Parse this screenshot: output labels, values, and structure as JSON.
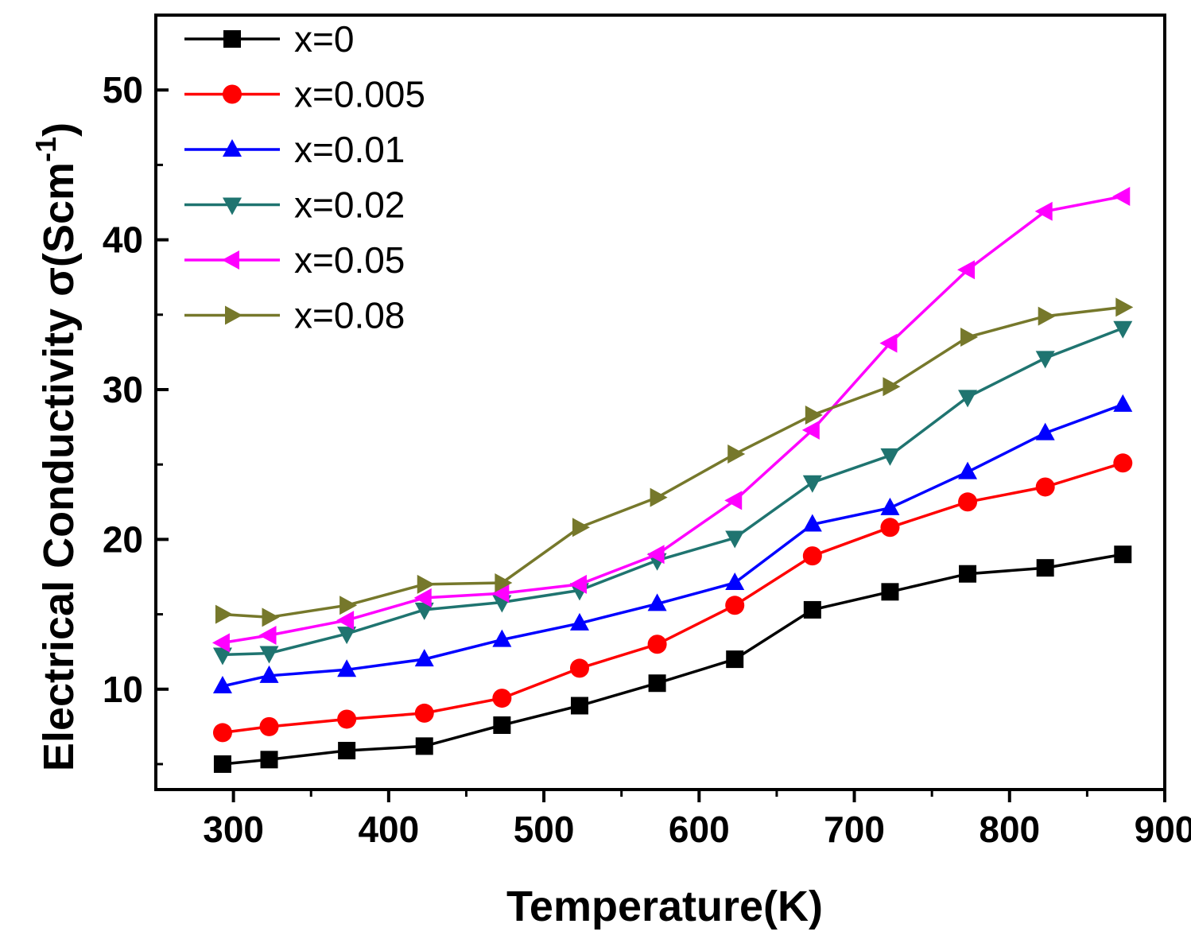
{
  "chart_data": {
    "type": "line",
    "title": "",
    "xlabel": "Temperature(K)",
    "ylabel": "Electrical Conductivity σ(Scm",
    "ylabel_superscript": "-1",
    "ylabel_close": ")",
    "xlim": [
      250,
      900
    ],
    "ylim": [
      3.3,
      55
    ],
    "xticks": [
      300,
      400,
      500,
      600,
      700,
      800,
      900
    ],
    "yticks": [
      10,
      20,
      30,
      40,
      50
    ],
    "legend_position": "top-left",
    "x": [
      293,
      323,
      373,
      423,
      473,
      523,
      573,
      623,
      673,
      723,
      773,
      823,
      873
    ],
    "series": [
      {
        "name": "x=0",
        "color": "#000000",
        "marker": "square",
        "values": [
          5.0,
          5.3,
          5.9,
          6.2,
          7.6,
          8.9,
          10.4,
          12.0,
          15.3,
          16.5,
          17.7,
          18.1,
          19.0
        ]
      },
      {
        "name": "x=0.005",
        "color": "#ff0000",
        "marker": "circle",
        "values": [
          7.1,
          7.5,
          8.0,
          8.4,
          9.4,
          11.4,
          13.0,
          15.6,
          18.9,
          20.8,
          22.5,
          23.5,
          25.1
        ]
      },
      {
        "name": "x=0.01",
        "color": "#0000ff",
        "marker": "triangle-up",
        "values": [
          10.2,
          10.9,
          11.3,
          12.0,
          13.3,
          14.4,
          15.7,
          17.1,
          21.0,
          22.1,
          24.5,
          27.1,
          29.0
        ]
      },
      {
        "name": "x=0.02",
        "color": "#1f7470",
        "marker": "triangle-down",
        "values": [
          12.3,
          12.4,
          13.7,
          15.3,
          15.8,
          16.6,
          18.6,
          20.1,
          23.8,
          25.6,
          29.5,
          32.1,
          34.1
        ]
      },
      {
        "name": "x=0.05",
        "color": "#ff00ff",
        "marker": "triangle-left",
        "values": [
          13.1,
          13.6,
          14.6,
          16.1,
          16.4,
          17.0,
          19.0,
          22.6,
          27.3,
          33.1,
          38.0,
          41.9,
          42.9
        ]
      },
      {
        "name": "x=0.08",
        "color": "#76782b",
        "marker": "triangle-right",
        "values": [
          15.0,
          14.8,
          15.6,
          17.0,
          17.1,
          20.8,
          22.8,
          25.7,
          28.3,
          30.2,
          33.5,
          34.9,
          35.5
        ]
      }
    ]
  }
}
